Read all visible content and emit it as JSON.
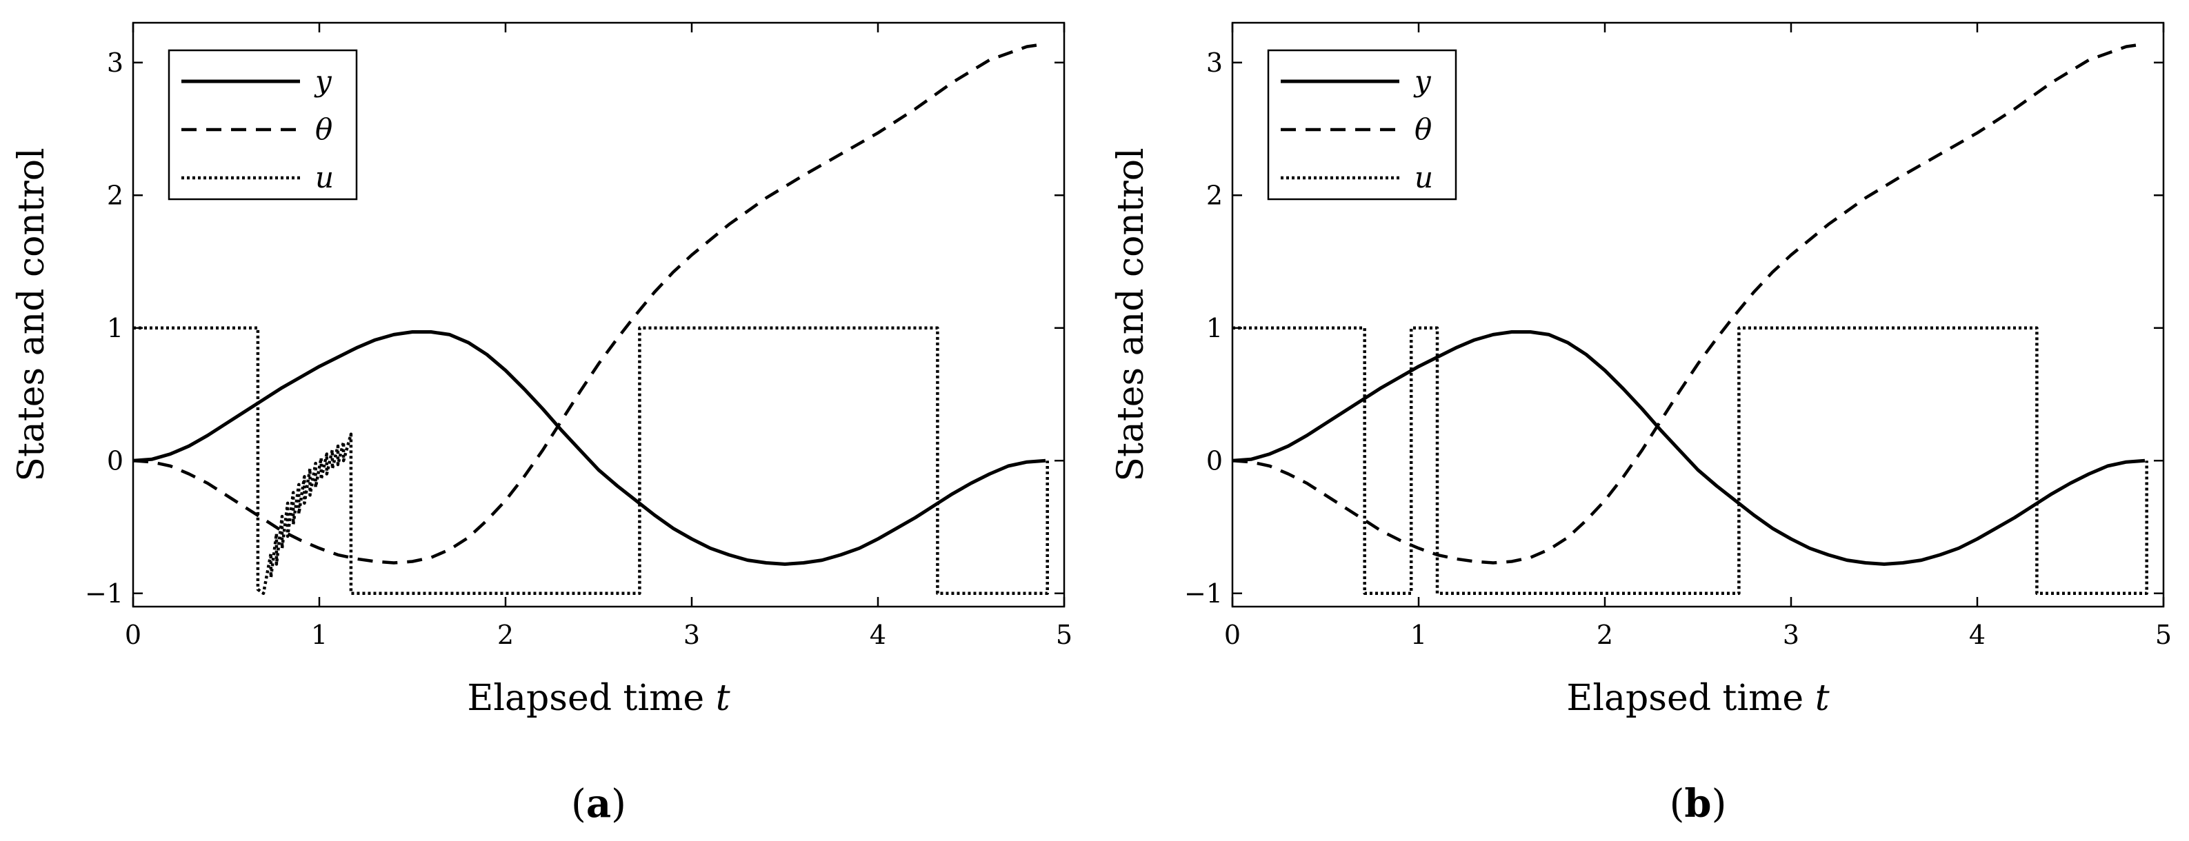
{
  "chart_data": [
    {
      "type": "line",
      "panel_id": "a",
      "caption_open": "(",
      "caption_letter": "a",
      "caption_close": ")",
      "xlabel": "Elapsed time",
      "xlabel_symbol": "t",
      "ylabel": "States and control",
      "xlim": [
        0,
        5
      ],
      "ylim": [
        -1.1,
        3.3
      ],
      "xticks": [
        0,
        1,
        2,
        3,
        4,
        5
      ],
      "yticks": [
        -1,
        0,
        1,
        2,
        3
      ],
      "legend_position": "top-left",
      "grid": false,
      "series": [
        {
          "name": "y",
          "style": "solid",
          "x": [
            0,
            0.1,
            0.2,
            0.3,
            0.4,
            0.5,
            0.6,
            0.7,
            0.8,
            0.9,
            1.0,
            1.1,
            1.2,
            1.3,
            1.4,
            1.5,
            1.6,
            1.7,
            1.8,
            1.9,
            2.0,
            2.1,
            2.2,
            2.3,
            2.4,
            2.5,
            2.6,
            2.7,
            2.8,
            2.9,
            3.0,
            3.1,
            3.2,
            3.3,
            3.4,
            3.5,
            3.6,
            3.7,
            3.8,
            3.9,
            4.0,
            4.1,
            4.2,
            4.3,
            4.4,
            4.5,
            4.6,
            4.7,
            4.8,
            4.9
          ],
          "y": [
            0.0,
            0.01,
            0.05,
            0.11,
            0.19,
            0.28,
            0.37,
            0.46,
            0.55,
            0.63,
            0.71,
            0.78,
            0.85,
            0.91,
            0.95,
            0.97,
            0.97,
            0.95,
            0.89,
            0.8,
            0.68,
            0.54,
            0.39,
            0.23,
            0.08,
            -0.07,
            -0.19,
            -0.3,
            -0.41,
            -0.51,
            -0.59,
            -0.66,
            -0.71,
            -0.75,
            -0.77,
            -0.78,
            -0.77,
            -0.75,
            -0.71,
            -0.66,
            -0.59,
            -0.51,
            -0.43,
            -0.34,
            -0.25,
            -0.17,
            -0.1,
            -0.04,
            -0.01,
            0.0
          ]
        },
        {
          "name": "θ",
          "style": "dashed",
          "x": [
            0,
            0.1,
            0.2,
            0.3,
            0.4,
            0.5,
            0.6,
            0.7,
            0.8,
            0.9,
            1.0,
            1.1,
            1.2,
            1.3,
            1.4,
            1.5,
            1.6,
            1.7,
            1.8,
            1.9,
            2.0,
            2.1,
            2.2,
            2.3,
            2.4,
            2.5,
            2.6,
            2.7,
            2.8,
            2.9,
            3.0,
            3.2,
            3.4,
            3.6,
            3.8,
            4.0,
            4.2,
            4.4,
            4.6,
            4.8,
            4.9
          ],
          "y": [
            0.0,
            -0.01,
            -0.04,
            -0.1,
            -0.17,
            -0.26,
            -0.35,
            -0.44,
            -0.53,
            -0.6,
            -0.66,
            -0.71,
            -0.74,
            -0.76,
            -0.77,
            -0.76,
            -0.73,
            -0.67,
            -0.58,
            -0.45,
            -0.3,
            -0.12,
            0.08,
            0.3,
            0.52,
            0.73,
            0.92,
            1.1,
            1.27,
            1.42,
            1.55,
            1.78,
            1.98,
            2.15,
            2.31,
            2.47,
            2.65,
            2.85,
            3.02,
            3.12,
            3.14
          ]
        },
        {
          "name": "u",
          "style": "dotted",
          "x": [
            0,
            0.67,
            0.67,
            0.7,
            0.72,
            0.74,
            0.74,
            0.77,
            0.77,
            0.8,
            0.8,
            0.83,
            0.83,
            0.86,
            0.86,
            0.89,
            0.89,
            0.92,
            0.92,
            0.95,
            0.95,
            0.98,
            0.98,
            1.01,
            1.01,
            1.04,
            1.04,
            1.07,
            1.07,
            1.1,
            1.1,
            1.13,
            1.13,
            1.17,
            1.17,
            2.72,
            2.72,
            4.32,
            4.32,
            4.91,
            4.91
          ],
          "y": [
            1,
            1,
            -0.97,
            -1.0,
            -0.85,
            -0.7,
            -0.88,
            -0.55,
            -0.78,
            -0.42,
            -0.66,
            -0.32,
            -0.57,
            -0.24,
            -0.48,
            -0.18,
            -0.4,
            -0.12,
            -0.32,
            -0.06,
            -0.26,
            -0.02,
            -0.2,
            0.02,
            -0.14,
            0.05,
            -0.1,
            0.08,
            -0.06,
            0.11,
            -0.03,
            0.14,
            0.0,
            0.2,
            -1,
            -1,
            1,
            1,
            -1,
            -1,
            0
          ]
        }
      ]
    },
    {
      "type": "line",
      "panel_id": "b",
      "caption_open": "(",
      "caption_letter": "b",
      "caption_close": ")",
      "xlabel": "Elapsed time",
      "xlabel_symbol": "t",
      "ylabel": "States and control",
      "xlim": [
        0,
        5
      ],
      "ylim": [
        -1.1,
        3.3
      ],
      "xticks": [
        0,
        1,
        2,
        3,
        4,
        5
      ],
      "yticks": [
        -1,
        0,
        1,
        2,
        3
      ],
      "legend_position": "top-left",
      "grid": false,
      "series": [
        {
          "name": "y",
          "style": "solid",
          "x": [
            0,
            0.1,
            0.2,
            0.3,
            0.4,
            0.5,
            0.6,
            0.7,
            0.8,
            0.9,
            1.0,
            1.1,
            1.2,
            1.3,
            1.4,
            1.5,
            1.6,
            1.7,
            1.8,
            1.9,
            2.0,
            2.1,
            2.2,
            2.3,
            2.4,
            2.5,
            2.6,
            2.7,
            2.8,
            2.9,
            3.0,
            3.1,
            3.2,
            3.3,
            3.4,
            3.5,
            3.6,
            3.7,
            3.8,
            3.9,
            4.0,
            4.1,
            4.2,
            4.3,
            4.4,
            4.5,
            4.6,
            4.7,
            4.8,
            4.9
          ],
          "y": [
            0.0,
            0.01,
            0.05,
            0.11,
            0.19,
            0.28,
            0.37,
            0.46,
            0.55,
            0.63,
            0.71,
            0.78,
            0.85,
            0.91,
            0.95,
            0.97,
            0.97,
            0.95,
            0.89,
            0.8,
            0.68,
            0.54,
            0.39,
            0.23,
            0.08,
            -0.07,
            -0.19,
            -0.3,
            -0.41,
            -0.51,
            -0.59,
            -0.66,
            -0.71,
            -0.75,
            -0.77,
            -0.78,
            -0.77,
            -0.75,
            -0.71,
            -0.66,
            -0.59,
            -0.51,
            -0.43,
            -0.34,
            -0.25,
            -0.17,
            -0.1,
            -0.04,
            -0.01,
            0.0
          ]
        },
        {
          "name": "θ",
          "style": "dashed",
          "x": [
            0,
            0.1,
            0.2,
            0.3,
            0.4,
            0.5,
            0.6,
            0.7,
            0.8,
            0.9,
            1.0,
            1.1,
            1.2,
            1.3,
            1.4,
            1.5,
            1.6,
            1.7,
            1.8,
            1.9,
            2.0,
            2.1,
            2.2,
            2.3,
            2.4,
            2.5,
            2.6,
            2.7,
            2.8,
            2.9,
            3.0,
            3.2,
            3.4,
            3.6,
            3.8,
            4.0,
            4.2,
            4.4,
            4.6,
            4.8,
            4.9
          ],
          "y": [
            0.0,
            -0.01,
            -0.04,
            -0.1,
            -0.17,
            -0.26,
            -0.35,
            -0.44,
            -0.53,
            -0.6,
            -0.66,
            -0.71,
            -0.74,
            -0.76,
            -0.77,
            -0.76,
            -0.73,
            -0.67,
            -0.58,
            -0.45,
            -0.3,
            -0.12,
            0.08,
            0.3,
            0.52,
            0.73,
            0.92,
            1.1,
            1.27,
            1.42,
            1.55,
            1.78,
            1.98,
            2.15,
            2.31,
            2.47,
            2.65,
            2.85,
            3.02,
            3.12,
            3.14
          ]
        },
        {
          "name": "u",
          "style": "dotted",
          "x": [
            0,
            0.71,
            0.71,
            0.96,
            0.96,
            1.1,
            1.1,
            2.72,
            2.72,
            4.32,
            4.32,
            4.91,
            4.91
          ],
          "y": [
            1,
            1,
            -1,
            -1,
            1,
            1,
            -1,
            -1,
            1,
            1,
            -1,
            -1,
            0
          ]
        }
      ]
    }
  ]
}
